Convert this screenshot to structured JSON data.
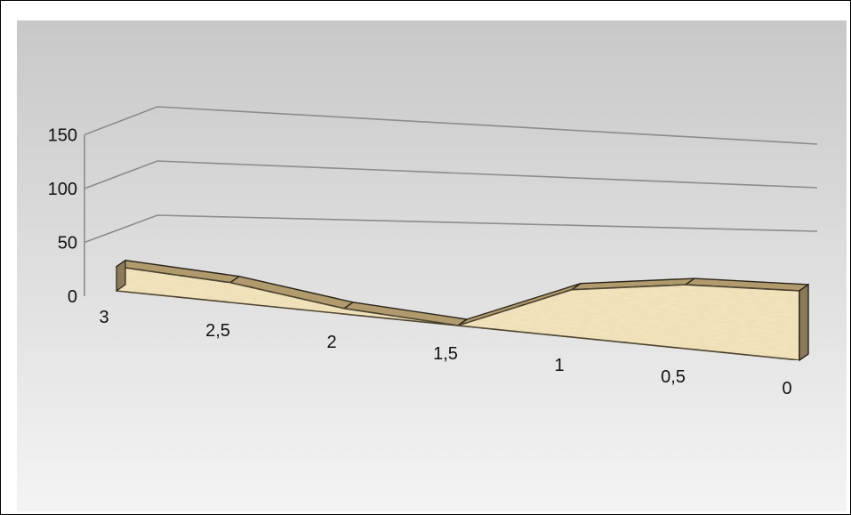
{
  "chart_data": {
    "type": "area",
    "style": "3d",
    "x": [
      3,
      2.5,
      2,
      1.5,
      1,
      0.5,
      0
    ],
    "x_tick_labels": [
      "3",
      "2,5",
      "2",
      "1,5",
      "1",
      "0,5",
      "0"
    ],
    "x_axis_direction": "descending",
    "series": [
      {
        "values": [
          22,
          18,
          5,
          0,
          43,
          58,
          63
        ]
      }
    ],
    "ylim": [
      0,
      150
    ],
    "y_tick_labels": [
      "0",
      "50",
      "100",
      "150"
    ],
    "xlim": [
      0,
      3
    ],
    "grid": true,
    "legend": "none",
    "colors": {
      "area_front": "#f5e6c0",
      "area_top": "#b09a6e",
      "area_side": "#8a7a5a",
      "edge": "#2a2418",
      "grid": "#8c8c8c",
      "background_top": "#c8c8c8",
      "background_bottom": "#f4f4f4"
    }
  }
}
